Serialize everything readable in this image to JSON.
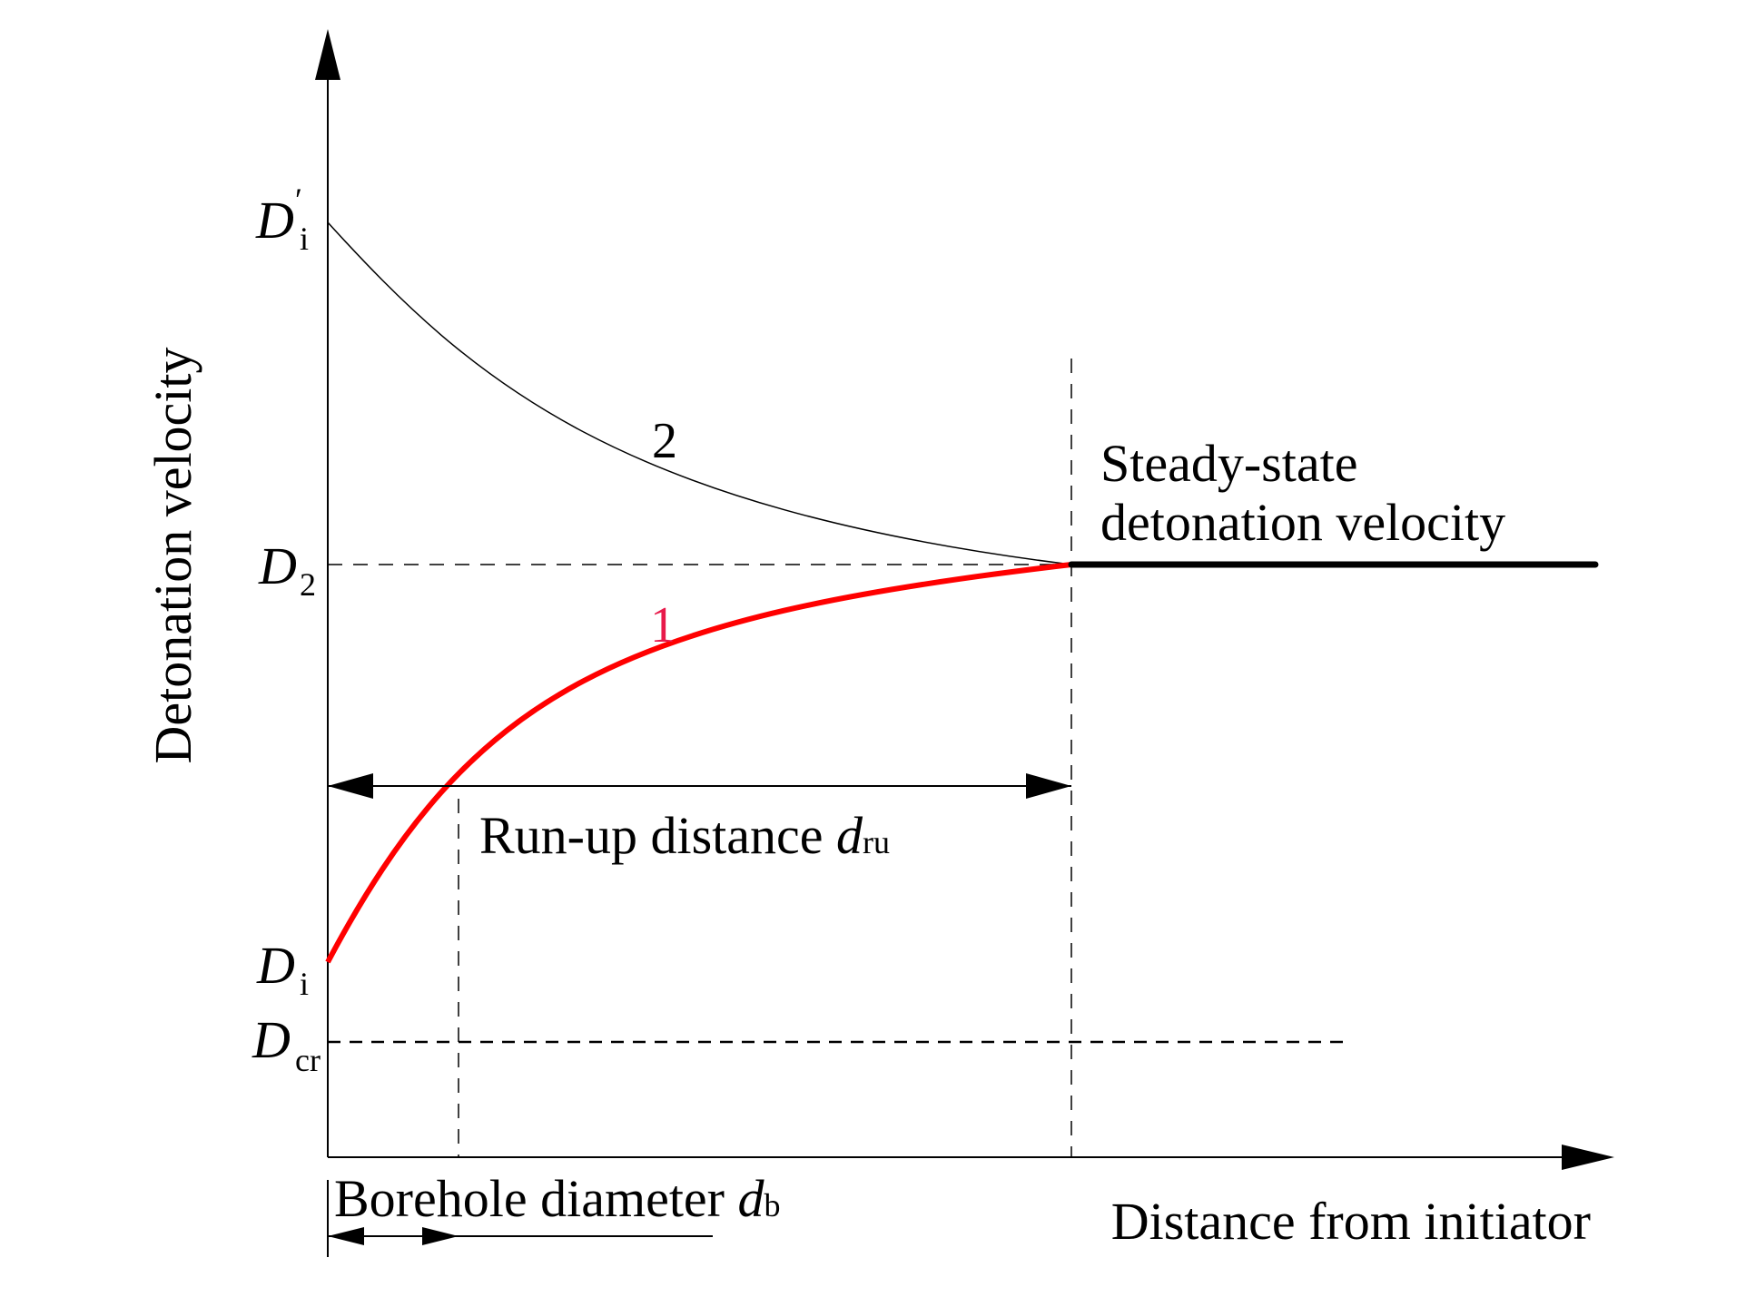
{
  "diagram": {
    "y_axis_label": "Detonation velocity",
    "x_axis_label": "Distance from initiator",
    "y_labels": {
      "d_i_prime": {
        "main": "D",
        "sub": "i",
        "prime": "′"
      },
      "d_2": {
        "main": "D",
        "sub": "2"
      },
      "d_i": {
        "main": "D",
        "sub": "i"
      },
      "d_cr": {
        "main": "D",
        "sub": "cr"
      }
    },
    "curves": [
      {
        "label": "1",
        "color": "#ff0000",
        "label_color": "#e8194a",
        "description_role": "rising curve from D_i to D_2"
      },
      {
        "label": "2",
        "color": "#000000",
        "description_role": "decaying curve from D_i' to D_2"
      }
    ],
    "steady_state_label_line1": "Steady-state",
    "steady_state_label_line2": "detonation velocity",
    "run_up": {
      "text": "Run-up distance ",
      "symbol": "d",
      "sub": "ru"
    },
    "borehole": {
      "text": "Borehole diameter ",
      "symbol": "d",
      "sub": "b"
    }
  }
}
